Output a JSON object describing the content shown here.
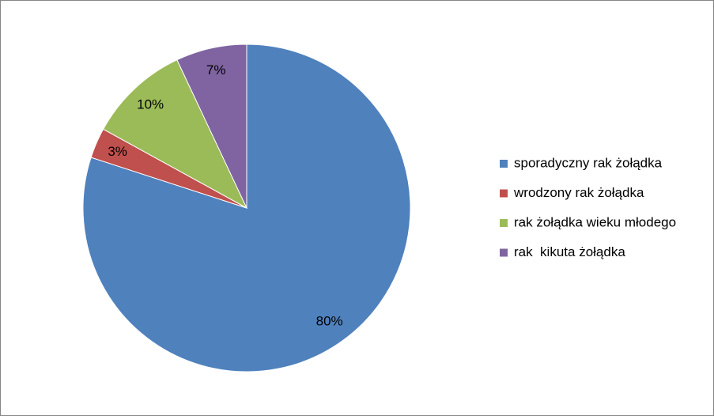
{
  "chart_data": {
    "type": "pie",
    "categories": [
      "sporadyczny rak żołądka",
      "wrodzony rak żołądka",
      "rak żołądka wieku młodego",
      "rak  kikuta żołądka"
    ],
    "values": [
      80,
      3,
      10,
      7
    ],
    "value_labels": [
      "80%",
      "3%",
      "10%",
      "7%"
    ],
    "colors": [
      "#4f81bd",
      "#c0504d",
      "#9bbb59",
      "#8064a2"
    ],
    "legend": "right"
  }
}
